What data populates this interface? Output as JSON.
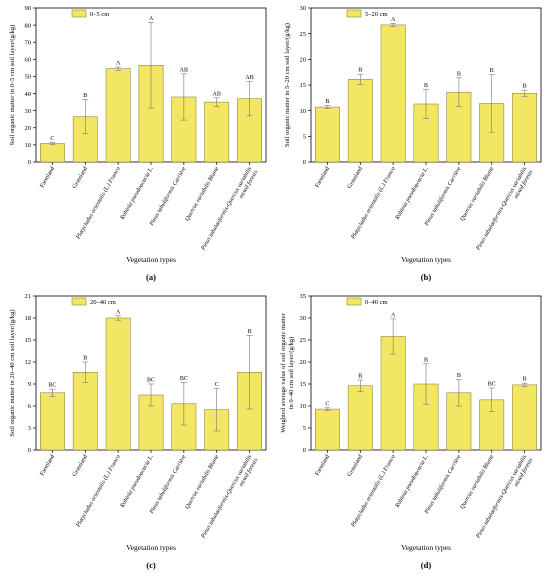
{
  "colors": {
    "bar_fill": "#f2e663",
    "bar_stroke": "#7a7436",
    "error_bar": "#777777"
  },
  "chart_data": [
    {
      "type": "bar",
      "panel": "(a)",
      "legend": "0–5 cm",
      "ylabel": "Soil organic matter in 0–5 cm soil layer/(g/kg)",
      "xlabel": "Vegetation types",
      "ylim": [
        0,
        90
      ],
      "yticks": [
        "0",
        "10",
        "20",
        "30",
        "40",
        "50",
        "60",
        "70",
        "80",
        "90"
      ],
      "categories": [
        "Farmland",
        "Grassland",
        "Platycladus orientalis (L.) Franco",
        "Robinia pseudoacacia L.",
        "Pinus tabuliformis Carrière",
        "Quercus variabilis Blume",
        "Pinus tabulaeformis-Quercus variabilis mixed forests"
      ],
      "values": [
        10.8,
        26.5,
        54.5,
        56.5,
        38,
        35,
        37
      ],
      "errors": [
        0.5,
        10,
        1,
        25,
        13.5,
        2.5,
        10
      ],
      "letters": [
        "C",
        "B",
        "A",
        "A",
        "AB",
        "AB",
        "AB"
      ]
    },
    {
      "type": "bar",
      "panel": "(b)",
      "legend": "5–20 cm",
      "ylabel": "Soil organic matter in 5–20 cm soil layer/(g/kg)",
      "xlabel": "Vegetation types",
      "ylim": [
        0,
        30
      ],
      "yticks": [
        "0",
        "5",
        "10",
        "15",
        "20",
        "25",
        "30"
      ],
      "categories": [
        "Farmland",
        "Grassland",
        "Platycladus orientalis (L.) Franco",
        "Robinia pseudoacacia L.",
        "Pinus tabuliformis Carrière",
        "Quercus variabilis Blume",
        "Pinus tabulaeformis-Quercus variabilis mixed forests"
      ],
      "values": [
        10.7,
        16.1,
        26.7,
        11.3,
        13.6,
        11.4,
        13.4
      ],
      "errors": [
        0.3,
        1,
        0.3,
        2.8,
        2.8,
        5.6,
        0.6
      ],
      "letters": [
        "B",
        "B",
        "A",
        "B",
        "B",
        "B",
        "B"
      ]
    },
    {
      "type": "bar",
      "panel": "(c)",
      "legend": "20–40 cm",
      "ylabel": "Soil organic matter in 20–40 cm soil layer/(g/kg)",
      "xlabel": "Vegetation types",
      "ylim": [
        0,
        21
      ],
      "yticks": [
        "0",
        "3",
        "6",
        "9",
        "12",
        "15",
        "18",
        "21"
      ],
      "categories": [
        "Farmland",
        "Grassland",
        "Platycladus orientalis (L.) Franco",
        "Robinia pseudoacacia L.",
        "Pinus tabuliformis Carrière",
        "Quercus variabilis Blume",
        "Pinus tabulaeformis-Quercus variabilis mixed forests"
      ],
      "values": [
        7.8,
        10.6,
        18,
        7.5,
        6.3,
        5.5,
        10.6
      ],
      "errors": [
        0.5,
        1.4,
        0.3,
        1.5,
        2.9,
        2.9,
        5
      ],
      "letters": [
        "BC",
        "B",
        "A",
        "BC",
        "BC",
        "C",
        "B"
      ]
    },
    {
      "type": "bar",
      "panel": "(d)",
      "legend": "0–40 cm",
      "ylabel": "Weighted average value of soil organic matter in 0–40 cm soil layer/(g/kg)",
      "xlabel": "Vegetation types",
      "ylim": [
        0,
        35
      ],
      "yticks": [
        "0",
        "5",
        "10",
        "15",
        "20",
        "25",
        "30",
        "35"
      ],
      "categories": [
        "Farmland",
        "Grassland",
        "Platycladus orientalis (L.) Franco",
        "Robinia pseudoacacia L.",
        "Pinus tabuliformis Carrière",
        "Quercus variabilis Blume",
        "Pinus tabulaeformis-Quercus variabilis mixed forests"
      ],
      "values": [
        9.3,
        14.6,
        25.8,
        15,
        13,
        11.4,
        14.8
      ],
      "errors": [
        0.3,
        1.3,
        4,
        4.6,
        3,
        2.7,
        0.4
      ],
      "letters": [
        "C",
        "B",
        "A",
        "B",
        "B",
        "BC",
        "B"
      ]
    }
  ]
}
